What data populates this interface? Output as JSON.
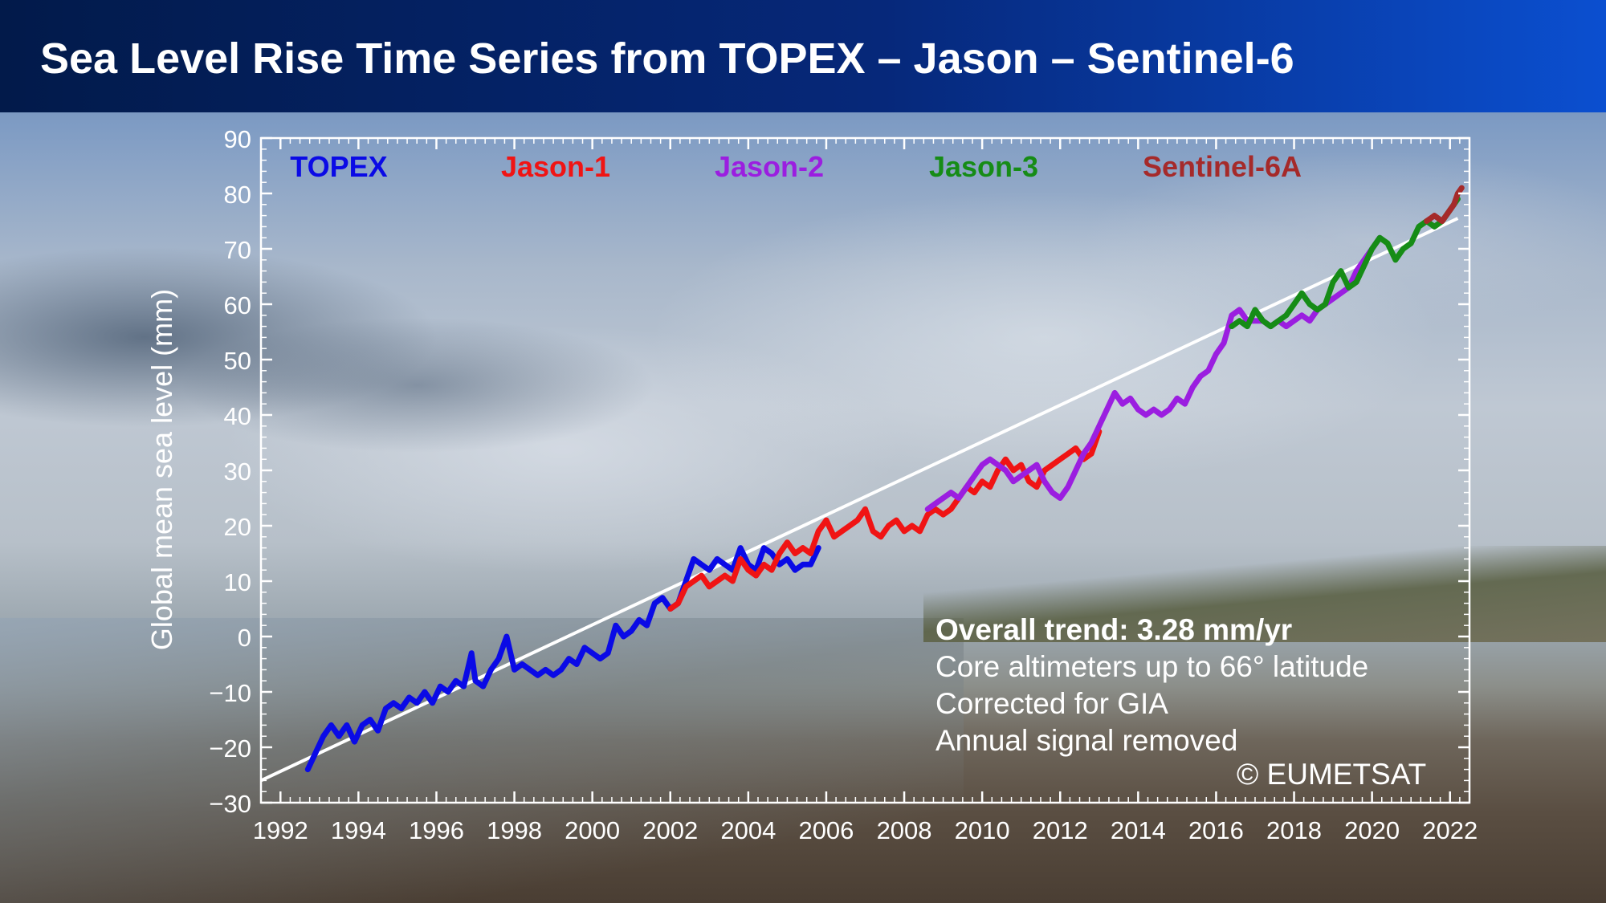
{
  "title": "Sea Level Rise Time Series from TOPEX – Jason – Sentinel-6",
  "annotations": {
    "trend": "Overall trend: 3.28 mm/yr",
    "line1": "Core altimeters up to 66° latitude",
    "line2": "Corrected for GIA",
    "line3": "Annual signal removed",
    "credit": "© EUMETSAT"
  },
  "colors": {
    "TOPEX": "#0a0ae6",
    "Jason-1": "#f01414",
    "Jason-2": "#9b1ee0",
    "Jason-3": "#168c16",
    "Sentinel-6A": "#a52a2a",
    "trend_line": "#ffffff",
    "axis": "#ffffff"
  },
  "chart_data": {
    "type": "line",
    "title": "",
    "xlabel": "",
    "ylabel": "Global mean sea level (mm)",
    "xlim": [
      1991.5,
      2022.5
    ],
    "ylim": [
      -30,
      90
    ],
    "xticks": [
      1992,
      1994,
      1996,
      1998,
      2000,
      2002,
      2004,
      2006,
      2008,
      2010,
      2012,
      2014,
      2016,
      2018,
      2020,
      2022
    ],
    "yticks": [
      -30,
      -20,
      -10,
      0,
      10,
      20,
      30,
      40,
      50,
      60,
      70,
      80,
      90
    ],
    "legend_placement": "top, inside plot",
    "trend": {
      "slope_mm_per_yr": 3.28,
      "points": [
        [
          1991.5,
          -26
        ],
        [
          2022.2,
          75.5
        ]
      ]
    },
    "series": [
      {
        "name": "TOPEX",
        "points": [
          [
            1992.7,
            -24
          ],
          [
            1992.9,
            -21
          ],
          [
            1993.1,
            -18
          ],
          [
            1993.3,
            -16
          ],
          [
            1993.5,
            -18
          ],
          [
            1993.7,
            -16
          ],
          [
            1993.9,
            -19
          ],
          [
            1994.1,
            -16
          ],
          [
            1994.3,
            -15
          ],
          [
            1994.5,
            -17
          ],
          [
            1994.7,
            -13
          ],
          [
            1994.9,
            -12
          ],
          [
            1995.1,
            -13
          ],
          [
            1995.3,
            -11
          ],
          [
            1995.5,
            -12
          ],
          [
            1995.7,
            -10
          ],
          [
            1995.9,
            -12
          ],
          [
            1996.1,
            -9
          ],
          [
            1996.3,
            -10
          ],
          [
            1996.5,
            -8
          ],
          [
            1996.7,
            -9
          ],
          [
            1996.9,
            -3
          ],
          [
            1997.0,
            -8
          ],
          [
            1997.2,
            -9
          ],
          [
            1997.4,
            -6
          ],
          [
            1997.6,
            -4
          ],
          [
            1997.8,
            0
          ],
          [
            1998.0,
            -6
          ],
          [
            1998.2,
            -5
          ],
          [
            1998.4,
            -6
          ],
          [
            1998.6,
            -7
          ],
          [
            1998.8,
            -6
          ],
          [
            1999.0,
            -7
          ],
          [
            1999.2,
            -6
          ],
          [
            1999.4,
            -4
          ],
          [
            1999.6,
            -5
          ],
          [
            1999.8,
            -2
          ],
          [
            2000.0,
            -3
          ],
          [
            2000.2,
            -4
          ],
          [
            2000.4,
            -3
          ],
          [
            2000.6,
            2
          ],
          [
            2000.8,
            0
          ],
          [
            2001.0,
            1
          ],
          [
            2001.2,
            3
          ],
          [
            2001.4,
            2
          ],
          [
            2001.6,
            6
          ],
          [
            2001.8,
            7
          ],
          [
            2002.0,
            5
          ],
          [
            2002.2,
            6
          ],
          [
            2002.4,
            10
          ],
          [
            2002.6,
            14
          ],
          [
            2002.8,
            13
          ],
          [
            2003.0,
            12
          ],
          [
            2003.2,
            14
          ],
          [
            2003.4,
            13
          ],
          [
            2003.6,
            12
          ],
          [
            2003.8,
            16
          ],
          [
            2004.0,
            13
          ],
          [
            2004.2,
            12
          ],
          [
            2004.4,
            16
          ],
          [
            2004.6,
            15
          ],
          [
            2004.8,
            13
          ],
          [
            2005.0,
            14
          ],
          [
            2005.2,
            12
          ],
          [
            2005.4,
            13
          ],
          [
            2005.6,
            13
          ],
          [
            2005.8,
            16
          ]
        ]
      },
      {
        "name": "Jason-1",
        "points": [
          [
            2002.0,
            5
          ],
          [
            2002.2,
            6
          ],
          [
            2002.4,
            9
          ],
          [
            2002.6,
            10
          ],
          [
            2002.8,
            11
          ],
          [
            2003.0,
            9
          ],
          [
            2003.2,
            10
          ],
          [
            2003.4,
            11
          ],
          [
            2003.6,
            10
          ],
          [
            2003.8,
            14
          ],
          [
            2004.0,
            12
          ],
          [
            2004.2,
            11
          ],
          [
            2004.4,
            13
          ],
          [
            2004.6,
            12
          ],
          [
            2004.8,
            15
          ],
          [
            2005.0,
            17
          ],
          [
            2005.2,
            15
          ],
          [
            2005.4,
            16
          ],
          [
            2005.6,
            15
          ],
          [
            2005.8,
            19
          ],
          [
            2006.0,
            21
          ],
          [
            2006.2,
            18
          ],
          [
            2006.4,
            19
          ],
          [
            2006.6,
            20
          ],
          [
            2006.8,
            21
          ],
          [
            2007.0,
            23
          ],
          [
            2007.2,
            19
          ],
          [
            2007.4,
            18
          ],
          [
            2007.6,
            20
          ],
          [
            2007.8,
            21
          ],
          [
            2008.0,
            19
          ],
          [
            2008.2,
            20
          ],
          [
            2008.4,
            19
          ],
          [
            2008.6,
            22
          ],
          [
            2008.8,
            23
          ],
          [
            2009.0,
            22
          ],
          [
            2009.2,
            23
          ],
          [
            2009.4,
            25
          ],
          [
            2009.6,
            27
          ],
          [
            2009.8,
            26
          ],
          [
            2010.0,
            28
          ],
          [
            2010.2,
            27
          ],
          [
            2010.4,
            30
          ],
          [
            2010.6,
            32
          ],
          [
            2010.8,
            30
          ],
          [
            2011.0,
            31
          ],
          [
            2011.2,
            28
          ],
          [
            2011.4,
            27
          ],
          [
            2011.6,
            30
          ],
          [
            2011.8,
            31
          ],
          [
            2012.0,
            32
          ],
          [
            2012.2,
            33
          ],
          [
            2012.4,
            34
          ],
          [
            2012.6,
            32
          ],
          [
            2012.8,
            33
          ],
          [
            2013.0,
            37
          ]
        ]
      },
      {
        "name": "Jason-2",
        "points": [
          [
            2008.6,
            23
          ],
          [
            2008.8,
            24
          ],
          [
            2009.0,
            25
          ],
          [
            2009.2,
            26
          ],
          [
            2009.4,
            25
          ],
          [
            2009.6,
            27
          ],
          [
            2009.8,
            29
          ],
          [
            2010.0,
            31
          ],
          [
            2010.2,
            32
          ],
          [
            2010.4,
            31
          ],
          [
            2010.6,
            30
          ],
          [
            2010.8,
            28
          ],
          [
            2011.0,
            29
          ],
          [
            2011.2,
            30
          ],
          [
            2011.4,
            31
          ],
          [
            2011.6,
            28
          ],
          [
            2011.8,
            26
          ],
          [
            2012.0,
            25
          ],
          [
            2012.2,
            27
          ],
          [
            2012.4,
            30
          ],
          [
            2012.6,
            33
          ],
          [
            2012.8,
            35
          ],
          [
            2013.0,
            38
          ],
          [
            2013.2,
            41
          ],
          [
            2013.4,
            44
          ],
          [
            2013.6,
            42
          ],
          [
            2013.8,
            43
          ],
          [
            2014.0,
            41
          ],
          [
            2014.2,
            40
          ],
          [
            2014.4,
            41
          ],
          [
            2014.6,
            40
          ],
          [
            2014.8,
            41
          ],
          [
            2015.0,
            43
          ],
          [
            2015.2,
            42
          ],
          [
            2015.4,
            45
          ],
          [
            2015.6,
            47
          ],
          [
            2015.8,
            48
          ],
          [
            2016.0,
            51
          ],
          [
            2016.2,
            53
          ],
          [
            2016.4,
            58
          ],
          [
            2016.6,
            59
          ],
          [
            2016.8,
            57
          ],
          [
            2017.0,
            57
          ],
          [
            2017.2,
            57
          ],
          [
            2017.4,
            56
          ],
          [
            2017.6,
            57
          ],
          [
            2017.8,
            56
          ],
          [
            2018.0,
            57
          ],
          [
            2018.2,
            58
          ],
          [
            2018.4,
            57
          ],
          [
            2018.6,
            59
          ],
          [
            2018.8,
            60
          ],
          [
            2019.0,
            61
          ],
          [
            2019.2,
            62
          ],
          [
            2019.4,
            63
          ],
          [
            2019.6,
            66
          ],
          [
            2019.8,
            68
          ],
          [
            2020.0,
            70
          ],
          [
            2020.2,
            72
          ]
        ]
      },
      {
        "name": "Jason-3",
        "points": [
          [
            2016.4,
            56
          ],
          [
            2016.6,
            57
          ],
          [
            2016.8,
            56
          ],
          [
            2017.0,
            59
          ],
          [
            2017.2,
            57
          ],
          [
            2017.4,
            56
          ],
          [
            2017.6,
            57
          ],
          [
            2017.8,
            58
          ],
          [
            2018.0,
            60
          ],
          [
            2018.2,
            62
          ],
          [
            2018.4,
            60
          ],
          [
            2018.6,
            59
          ],
          [
            2018.8,
            60
          ],
          [
            2019.0,
            64
          ],
          [
            2019.2,
            66
          ],
          [
            2019.4,
            63
          ],
          [
            2019.6,
            64
          ],
          [
            2019.8,
            67
          ],
          [
            2020.0,
            70
          ],
          [
            2020.2,
            72
          ],
          [
            2020.4,
            71
          ],
          [
            2020.6,
            68
          ],
          [
            2020.8,
            70
          ],
          [
            2021.0,
            71
          ],
          [
            2021.2,
            74
          ],
          [
            2021.4,
            75
          ],
          [
            2021.6,
            74
          ],
          [
            2021.8,
            75
          ],
          [
            2022.0,
            77
          ],
          [
            2022.2,
            79
          ]
        ]
      },
      {
        "name": "Sentinel-6A",
        "points": [
          [
            2021.4,
            75
          ],
          [
            2021.6,
            76
          ],
          [
            2021.8,
            75
          ],
          [
            2022.0,
            77
          ],
          [
            2022.1,
            78
          ],
          [
            2022.2,
            80
          ],
          [
            2022.3,
            81
          ]
        ]
      }
    ]
  }
}
